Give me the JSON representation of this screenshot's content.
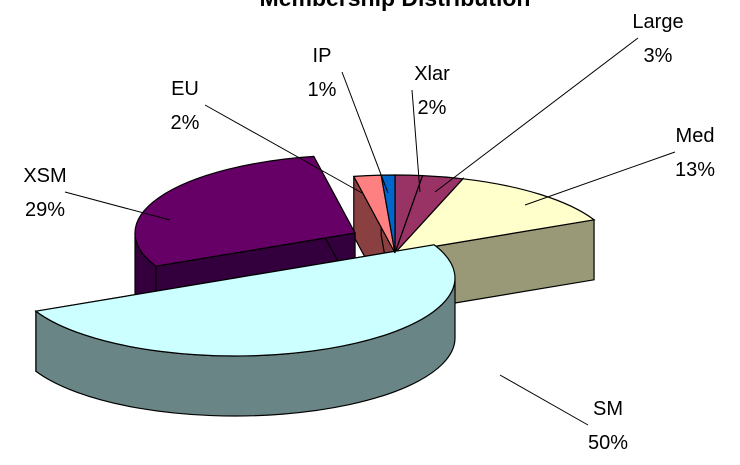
{
  "chart_data": {
    "type": "pie",
    "title": "Membership Distribution",
    "slices": [
      {
        "label": "Xlar",
        "value": 2,
        "pct_text": "2%",
        "color": "#993366",
        "side": "#5c1f3d"
      },
      {
        "label": "Large",
        "value": 3,
        "pct_text": "3%",
        "color": "#993366",
        "side": "#5c1f3d"
      },
      {
        "label": "Med",
        "value": 13,
        "pct_text": "13%",
        "color": "#ffffcc",
        "side": "#999977"
      },
      {
        "label": "SM",
        "value": 50,
        "pct_text": "50%",
        "color": "#ccffff",
        "side": "#6a8585"
      },
      {
        "label": "XSM",
        "value": 29,
        "pct_text": "29%",
        "color": "#660066",
        "side": "#33003d"
      },
      {
        "label": "EU",
        "value": 2,
        "pct_text": "2%",
        "color": "#ff8080",
        "side": "#8a4040"
      },
      {
        "label": "IP",
        "value": 1,
        "pct_text": "1%",
        "color": "#0066cc",
        "side": "#003a75"
      }
    ],
    "legend": "none",
    "labels_position": "outside-with-leader-lines",
    "style": "3d-exploded"
  }
}
